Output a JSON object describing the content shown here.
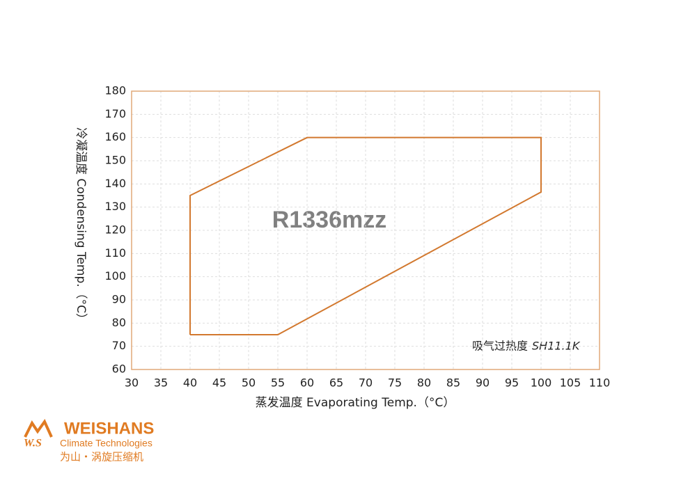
{
  "chart_data": {
    "type": "line",
    "x": [
      40,
      40,
      60,
      100,
      100,
      55,
      40
    ],
    "values": [
      75,
      135,
      160,
      160,
      136.5,
      75,
      75
    ],
    "color": "#d2782e",
    "xlim": [
      30,
      110
    ],
    "xticks": [
      30,
      35,
      40,
      45,
      50,
      55,
      60,
      65,
      70,
      75,
      80,
      85,
      90,
      95,
      100,
      105,
      110
    ],
    "ylim": [
      60,
      180
    ],
    "yticks": [
      60,
      70,
      80,
      90,
      100,
      110,
      120,
      130,
      140,
      150,
      160,
      170,
      180
    ],
    "grid": true,
    "x_label": "蒸发温度  Evaporating Temp.（°C）",
    "y_label": "冷凝温度 Condensing Temp.（°C）",
    "annotations": [
      "R1336mzz",
      "吸气过热度",
      "SH11.1K"
    ]
  },
  "logo": {
    "mark": "W.S",
    "name": "WEISHANS",
    "tagline": "Climate Technologies",
    "chinese": "为山・涡旋压缩机"
  }
}
